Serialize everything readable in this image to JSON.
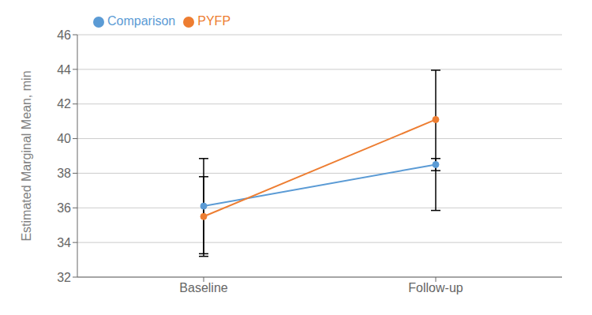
{
  "chart_data": {
    "type": "line",
    "categories": [
      "Baseline",
      "Follow-up"
    ],
    "series": [
      {
        "name": "Comparison",
        "color": "#5b9bd5",
        "marker": "circle",
        "values": [
          36.1,
          38.5
        ],
        "yerr_low": [
          2.75,
          0.35
        ],
        "yerr_high": [
          2.75,
          0.35
        ]
      },
      {
        "name": "PYFP",
        "color": "#ed7d31",
        "marker": "circle",
        "values": [
          35.5,
          41.1
        ],
        "yerr_low": [
          2.3,
          5.25
        ],
        "yerr_high": [
          2.3,
          2.85
        ]
      }
    ],
    "ylabel": "Estimated Marginal Mean, min",
    "ylim": [
      32,
      46
    ],
    "yticks": [
      32,
      34,
      36,
      38,
      40,
      42,
      44,
      46
    ],
    "grid": true,
    "legend": "upper left"
  }
}
